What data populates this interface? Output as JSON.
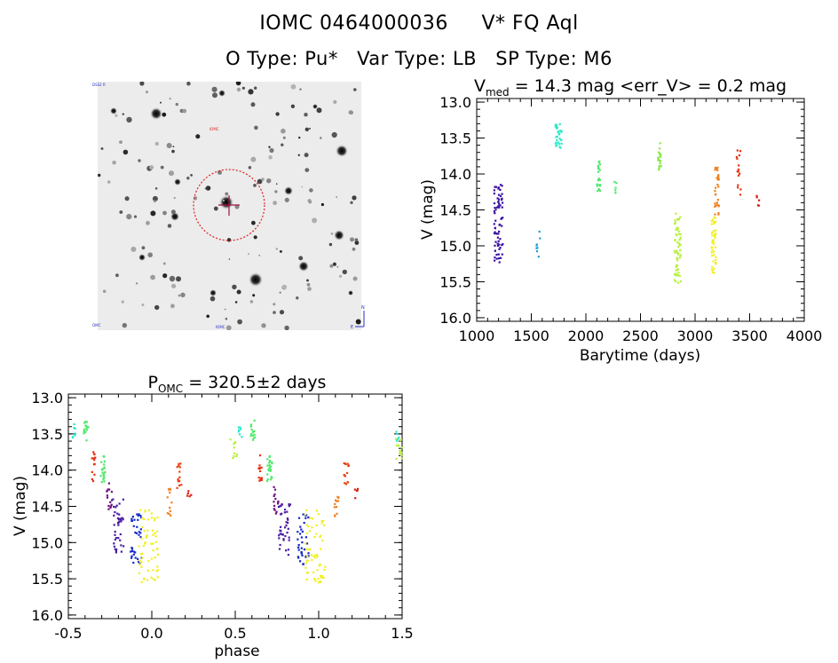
{
  "header": {
    "object_id": "IOMC 0464000036",
    "star_name": "V* FQ Aql",
    "otype": "O Type: Pu*",
    "vartype": "Var Type: LB",
    "sptype": "SP Type: M6"
  },
  "finder": {
    "tiny_labels": [
      "DSS2 R",
      "IOMC",
      "OMC",
      "IOMC",
      "E",
      "N"
    ]
  },
  "chart_data": [
    {
      "type": "scatter",
      "title": "V_med = 14.3 mag <err_V> = 0.2 mag",
      "title_parts": {
        "sym": "V",
        "sub": "med",
        "rest": " = 14.3 mag <err_V> = 0.2 mag"
      },
      "xlabel": "Barytime (days)",
      "ylabel": "V (mag)",
      "xlim": [
        1000,
        4000
      ],
      "ylim": [
        16.05,
        12.95
      ],
      "xticks": [
        1000,
        1500,
        2000,
        2500,
        3000,
        3500,
        4000
      ],
      "yticks": [
        13.0,
        13.5,
        14.0,
        14.5,
        15.0,
        15.5,
        16.0
      ],
      "y_inverted": true,
      "groups": [
        {
          "x_range": [
            1160,
            1240
          ],
          "y_range": [
            14.15,
            15.3
          ],
          "color": "#3a0ea0",
          "n": 70
        },
        {
          "x_range": [
            1540,
            1580
          ],
          "y_range": [
            14.7,
            15.2
          ],
          "color": "#1aa0e0",
          "n": 8
        },
        {
          "x_range": [
            1720,
            1780
          ],
          "y_range": [
            13.3,
            13.65
          ],
          "color": "#2de8c8",
          "n": 30
        },
        {
          "x_range": [
            2100,
            2130
          ],
          "y_range": [
            13.8,
            14.25
          ],
          "color": "#4ee86a",
          "n": 22
        },
        {
          "x_range": [
            2260,
            2280
          ],
          "y_range": [
            14.1,
            14.35
          ],
          "color": "#4ee86a",
          "n": 5
        },
        {
          "x_range": [
            2660,
            2690
          ],
          "y_range": [
            13.55,
            13.95
          ],
          "color": "#8ce84a",
          "n": 20
        },
        {
          "x_range": [
            2810,
            2870
          ],
          "y_range": [
            14.55,
            15.55
          ],
          "color": "#b8f040",
          "n": 60
        },
        {
          "x_range": [
            3150,
            3190
          ],
          "y_range": [
            14.6,
            15.4
          ],
          "color": "#f0f020",
          "n": 45
        },
        {
          "x_range": [
            3180,
            3220
          ],
          "y_range": [
            13.9,
            14.6
          ],
          "color": "#f08020",
          "n": 30
        },
        {
          "x_range": [
            3380,
            3420
          ],
          "y_range": [
            13.65,
            14.3
          ],
          "color": "#e83010",
          "n": 15
        },
        {
          "x_range": [
            3560,
            3590
          ],
          "y_range": [
            14.3,
            14.45
          ],
          "color": "#d82010",
          "n": 5
        }
      ]
    },
    {
      "type": "scatter",
      "title": "P_OMC = 320.5±2 days",
      "title_parts": {
        "sym": "P",
        "sub": "OMC",
        "rest": " = 320.5±2 days"
      },
      "xlabel": "phase",
      "ylabel": "V (mag)",
      "xlim": [
        -0.5,
        1.5
      ],
      "ylim": [
        16.05,
        12.95
      ],
      "xticks": [
        -0.5,
        0.0,
        0.5,
        1.0,
        1.5
      ],
      "xtick_labels": [
        "-0.5",
        "0.0",
        "0.5",
        "1.0",
        "1.5"
      ],
      "yticks": [
        13.0,
        13.5,
        14.0,
        14.5,
        15.0,
        15.5,
        16.0
      ],
      "y_inverted": true,
      "groups": [
        {
          "x_range": [
            -0.48,
            -0.46
          ],
          "y_range": [
            13.35,
            13.55
          ],
          "color": "#2de8c8",
          "n": 8
        },
        {
          "x_range": [
            -0.41,
            -0.38
          ],
          "y_range": [
            13.3,
            13.6
          ],
          "color": "#4ee86a",
          "n": 14
        },
        {
          "x_range": [
            -0.36,
            -0.34
          ],
          "y_range": [
            13.75,
            14.2
          ],
          "color": "#e83010",
          "n": 14
        },
        {
          "x_range": [
            -0.31,
            -0.28
          ],
          "y_range": [
            13.8,
            14.2
          ],
          "color": "#4ee86a",
          "n": 22
        },
        {
          "x_range": [
            -0.27,
            -0.24
          ],
          "y_range": [
            14.15,
            14.6
          ],
          "color": "#6e1080",
          "n": 14
        },
        {
          "x_range": [
            -0.24,
            -0.17
          ],
          "y_range": [
            14.4,
            15.2
          ],
          "color": "#4a1ca0",
          "n": 40
        },
        {
          "x_range": [
            -0.13,
            -0.06
          ],
          "y_range": [
            14.6,
            15.3
          ],
          "color": "#1428c8",
          "n": 35
        },
        {
          "x_range": [
            -0.08,
            0.04
          ],
          "y_range": [
            14.55,
            15.55
          ],
          "color": "#f0f020",
          "n": 60
        },
        {
          "x_range": [
            0.09,
            0.12
          ],
          "y_range": [
            14.25,
            14.65
          ],
          "color": "#f08020",
          "n": 12
        },
        {
          "x_range": [
            0.15,
            0.18
          ],
          "y_range": [
            13.9,
            14.25
          ],
          "color": "#e84010",
          "n": 14
        },
        {
          "x_range": [
            0.21,
            0.24
          ],
          "y_range": [
            14.25,
            14.45
          ],
          "color": "#d82010",
          "n": 5
        },
        {
          "x_range": [
            0.52,
            0.54
          ],
          "y_range": [
            13.35,
            13.55
          ],
          "color": "#2de8c8",
          "n": 8
        },
        {
          "x_range": [
            0.47,
            0.51
          ],
          "y_range": [
            13.55,
            13.85
          ],
          "color": "#b8f040",
          "n": 10
        },
        {
          "x_range": [
            0.59,
            0.62
          ],
          "y_range": [
            13.3,
            13.6
          ],
          "color": "#4ee86a",
          "n": 14
        },
        {
          "x_range": [
            0.64,
            0.66
          ],
          "y_range": [
            13.75,
            14.2
          ],
          "color": "#e83010",
          "n": 14
        },
        {
          "x_range": [
            0.69,
            0.72
          ],
          "y_range": [
            13.8,
            14.2
          ],
          "color": "#4ee86a",
          "n": 22
        },
        {
          "x_range": [
            0.73,
            0.76
          ],
          "y_range": [
            14.15,
            14.6
          ],
          "color": "#6e1080",
          "n": 14
        },
        {
          "x_range": [
            0.76,
            0.83
          ],
          "y_range": [
            14.4,
            15.2
          ],
          "color": "#4a1ca0",
          "n": 40
        },
        {
          "x_range": [
            0.87,
            0.94
          ],
          "y_range": [
            14.6,
            15.3
          ],
          "color": "#1428c8",
          "n": 35
        },
        {
          "x_range": [
            0.92,
            1.04
          ],
          "y_range": [
            14.55,
            15.55
          ],
          "color": "#f0f020",
          "n": 60
        },
        {
          "x_range": [
            1.09,
            1.12
          ],
          "y_range": [
            14.25,
            14.65
          ],
          "color": "#f08020",
          "n": 12
        },
        {
          "x_range": [
            1.15,
            1.18
          ],
          "y_range": [
            13.9,
            14.25
          ],
          "color": "#e84010",
          "n": 14
        },
        {
          "x_range": [
            1.21,
            1.24
          ],
          "y_range": [
            14.25,
            14.45
          ],
          "color": "#d82010",
          "n": 5
        },
        {
          "x_range": [
            1.46,
            1.5
          ],
          "y_range": [
            13.55,
            13.85
          ],
          "color": "#b8f040",
          "n": 14
        },
        {
          "x_range": [
            1.46,
            1.48
          ],
          "y_range": [
            13.4,
            13.6
          ],
          "color": "#2de8c8",
          "n": 5
        }
      ]
    }
  ]
}
